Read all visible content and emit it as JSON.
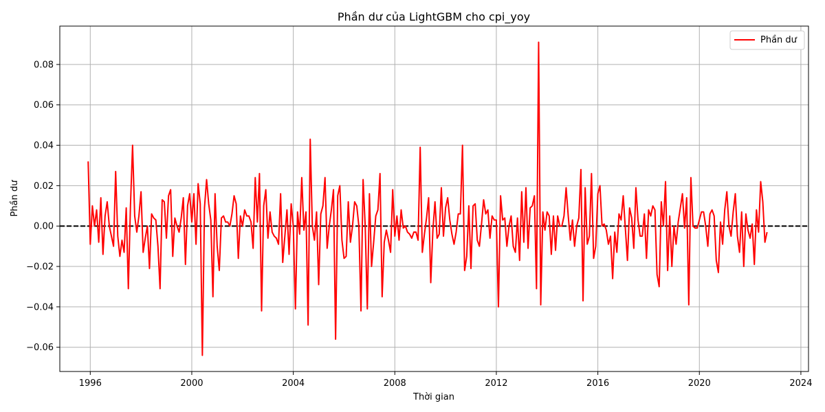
{
  "chart_data": {
    "type": "line",
    "title": "Phần dư của LightGBM cho cpi_yoy",
    "xlabel": "Thời gian",
    "ylabel": "Phần dư",
    "xlim": [
      1994.8,
      2024.3
    ],
    "ylim": [
      -0.072,
      0.099
    ],
    "x_ticks": [
      1996,
      2000,
      2004,
      2008,
      2012,
      2016,
      2020,
      2024
    ],
    "y_ticks": [
      -0.06,
      -0.04,
      -0.02,
      0.0,
      0.02,
      0.04,
      0.06,
      0.08
    ],
    "y_tick_labels": [
      "−0.06",
      "−0.04",
      "−0.02",
      "0.00",
      "0.02",
      "0.04",
      "0.06",
      "0.08"
    ],
    "grid": true,
    "legend_position": "top-right",
    "reference_line": {
      "y": 0.0,
      "style": "dashed",
      "color": "#000000"
    },
    "series": [
      {
        "name": "Phần dư",
        "color": "#ff0000",
        "x_start": 1995.917,
        "x_step": 0.08333,
        "values": [
          0.032,
          -0.009,
          0.01,
          0.0,
          0.008,
          -0.008,
          0.014,
          -0.014,
          0.005,
          0.012,
          0.0,
          -0.005,
          -0.01,
          0.027,
          -0.005,
          -0.015,
          -0.007,
          -0.013,
          0.009,
          -0.031,
          0.01,
          0.04,
          0.005,
          -0.003,
          0.005,
          0.017,
          -0.013,
          -0.006,
          0.0,
          -0.021,
          0.006,
          0.004,
          0.003,
          -0.01,
          -0.031,
          0.013,
          0.012,
          -0.006,
          0.015,
          0.018,
          -0.015,
          0.004,
          0.0,
          -0.003,
          0.004,
          0.014,
          -0.019,
          0.01,
          0.016,
          0.002,
          0.016,
          -0.009,
          0.021,
          0.011,
          -0.064,
          0.009,
          0.023,
          0.011,
          0.003,
          -0.035,
          0.016,
          -0.01,
          -0.022,
          0.004,
          0.005,
          0.002,
          0.002,
          0.0,
          0.006,
          0.015,
          0.011,
          -0.016,
          0.005,
          0.0,
          0.008,
          0.005,
          0.005,
          0.002,
          -0.011,
          0.024,
          0.002,
          0.026,
          -0.042,
          0.01,
          0.018,
          -0.006,
          0.007,
          -0.003,
          -0.005,
          -0.006,
          -0.009,
          0.016,
          -0.018,
          -0.005,
          0.008,
          -0.014,
          0.011,
          0.0,
          -0.041,
          0.007,
          -0.004,
          0.024,
          -0.002,
          0.007,
          -0.049,
          0.043,
          0.0,
          -0.007,
          0.007,
          -0.029,
          0.006,
          0.01,
          0.024,
          -0.011,
          0.0,
          0.008,
          0.018,
          -0.056,
          0.015,
          0.02,
          -0.007,
          -0.016,
          -0.015,
          0.012,
          -0.008,
          0.0,
          0.012,
          0.01,
          0.0,
          -0.042,
          0.023,
          0.0,
          -0.041,
          0.016,
          -0.02,
          -0.008,
          0.005,
          0.008,
          0.026,
          -0.035,
          -0.008,
          -0.002,
          -0.007,
          -0.013,
          0.018,
          -0.005,
          0.005,
          -0.007,
          0.008,
          -0.001,
          0.0,
          -0.003,
          -0.004,
          -0.006,
          -0.003,
          -0.003,
          -0.007,
          0.039,
          -0.013,
          -0.004,
          0.004,
          0.014,
          -0.028,
          -0.002,
          0.012,
          -0.006,
          -0.004,
          0.019,
          -0.005,
          0.009,
          0.014,
          0.003,
          -0.004,
          -0.009,
          -0.003,
          0.006,
          0.006,
          0.04,
          -0.022,
          -0.015,
          0.01,
          -0.021,
          0.01,
          0.011,
          -0.007,
          -0.01,
          0.001,
          0.013,
          0.006,
          0.008,
          -0.006,
          0.005,
          0.003,
          0.003,
          -0.04,
          0.015,
          0.003,
          0.004,
          -0.01,
          0.0,
          0.005,
          -0.01,
          -0.013,
          0.004,
          -0.017,
          0.017,
          -0.008,
          0.019,
          -0.011,
          0.009,
          0.01,
          0.015,
          -0.031,
          0.091,
          -0.039,
          0.007,
          -0.002,
          0.007,
          0.005,
          -0.014,
          0.005,
          -0.012,
          0.005,
          0.0,
          0.0,
          0.005,
          0.019,
          0.005,
          -0.007,
          0.003,
          -0.01,
          0.0,
          0.004,
          0.028,
          -0.037,
          0.019,
          -0.009,
          -0.005,
          0.026,
          -0.016,
          -0.01,
          0.016,
          0.02,
          0.0,
          0.001,
          -0.002,
          -0.009,
          -0.005,
          -0.026,
          -0.003,
          -0.013,
          0.006,
          0.003,
          0.015,
          -0.001,
          -0.017,
          0.009,
          0.004,
          -0.011,
          0.019,
          0.003,
          -0.005,
          -0.005,
          0.006,
          -0.016,
          0.008,
          0.005,
          0.01,
          0.008,
          -0.024,
          -0.03,
          0.012,
          0.0,
          0.022,
          -0.022,
          0.005,
          -0.02,
          0.0,
          -0.009,
          0.002,
          0.009,
          0.016,
          -0.001,
          0.014,
          -0.039,
          0.024,
          0.0,
          -0.001,
          -0.001,
          0.003,
          0.007,
          0.007,
          0.0,
          -0.01,
          0.006,
          0.008,
          0.005,
          -0.017,
          -0.023,
          0.002,
          -0.009,
          0.008,
          0.017,
          0.0,
          -0.005,
          0.007,
          0.016,
          -0.005,
          -0.013,
          0.007,
          -0.02,
          0.006,
          -0.002,
          -0.006,
          0.001,
          -0.019,
          0.008,
          -0.003,
          0.022,
          0.012,
          -0.008,
          -0.003
        ]
      }
    ]
  }
}
